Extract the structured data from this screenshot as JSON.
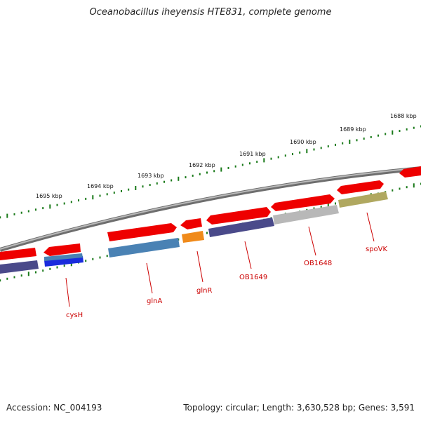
{
  "header": {
    "title": "Oceanobacillus iheyensis HTE831, complete genome"
  },
  "footer": {
    "accession": "Accession: NC_004193",
    "topology": "Topology: circular; Length: 3,630,528 bp; Genes: 3,591"
  },
  "scale_labels": [
    "1688 kbp",
    "1689 kbp",
    "1690 kbp",
    "1691 kbp",
    "1692 kbp",
    "1693 kbp",
    "1694 kbp",
    "1695 kbp"
  ],
  "gene_labels": [
    "cysH",
    "glnA",
    "glnR",
    "OB1649",
    "OB1648",
    "spoVK"
  ],
  "colors": {
    "backbone": "#8a8a8a",
    "forward_strand": "#ee0000",
    "tick": "#1a7a1a",
    "label": "#cc0000",
    "genes": {
      "cysH": "#1a2cdd",
      "glnA": "#4a82b4",
      "glnR": "#f08a1a",
      "OB1649": "#4a4a8a",
      "OB1648": "#b8b8b8",
      "spoVK": "#b0a860",
      "left_edge": "#4a4a8a"
    }
  }
}
